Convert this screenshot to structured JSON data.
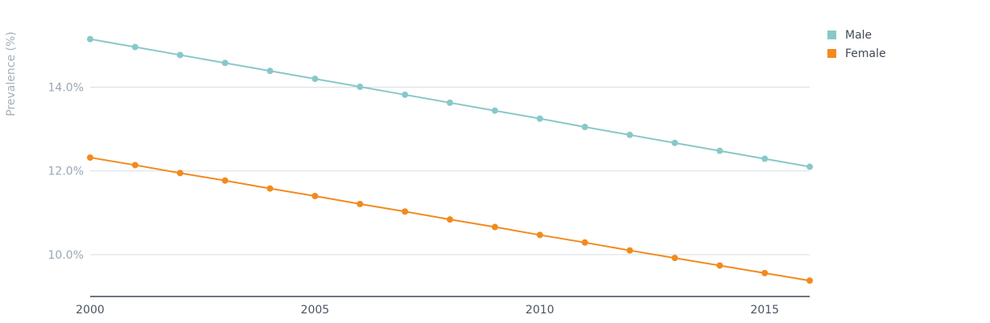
{
  "chart_data": {
    "type": "line",
    "ylabel": "Prevalence (%)",
    "xlabel": "",
    "x": [
      2000,
      2001,
      2002,
      2003,
      2004,
      2005,
      2006,
      2007,
      2008,
      2009,
      2010,
      2011,
      2012,
      2013,
      2014,
      2015,
      2016
    ],
    "xlim": [
      2000,
      2016
    ],
    "ylim": [
      9.0,
      15.7
    ],
    "x_ticks": [
      "2000",
      "2005",
      "2010",
      "2015"
    ],
    "y_ticks": [
      "10.0%",
      "12.0%",
      "14.0%"
    ],
    "grid": "horizontal",
    "legend_position": "top-right",
    "series": [
      {
        "name": "Male",
        "color": "#88c8c8",
        "values": [
          15.15,
          14.96,
          14.77,
          14.58,
          14.39,
          14.2,
          14.01,
          13.82,
          13.63,
          13.44,
          13.25,
          13.05,
          12.86,
          12.67,
          12.48,
          12.29,
          12.1
        ]
      },
      {
        "name": "Female",
        "color": "#f28a1e",
        "values": [
          12.32,
          12.14,
          11.95,
          11.77,
          11.58,
          11.4,
          11.21,
          11.03,
          10.84,
          10.66,
          10.47,
          10.29,
          10.1,
          9.92,
          9.74,
          9.56,
          9.38
        ]
      }
    ]
  }
}
